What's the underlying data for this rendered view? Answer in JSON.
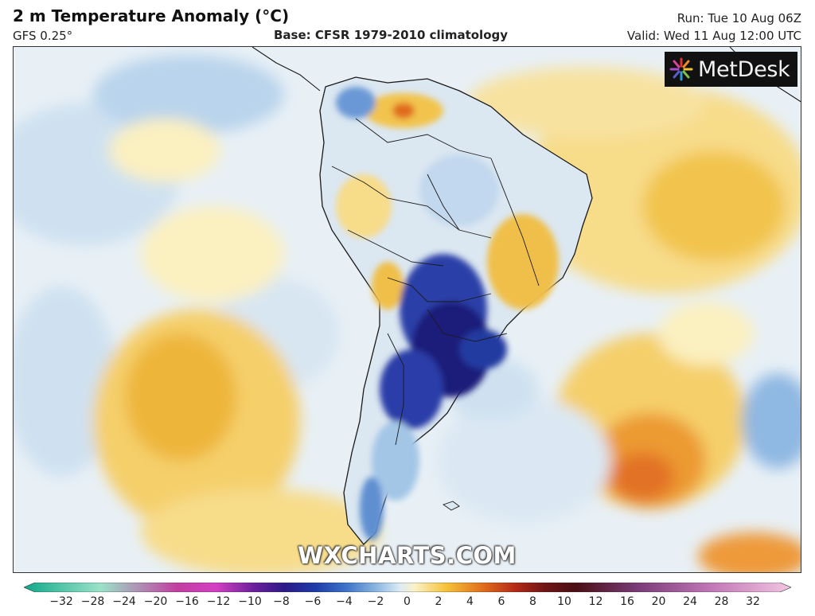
{
  "header": {
    "title": "2 m Temperature Anomaly (°C)",
    "model": "GFS 0.25°",
    "base": "Base: CFSR 1979-2010 climatology",
    "run": "Run: Tue 10 Aug 06Z",
    "valid": "Valid: Wed 11 Aug 12:00 UTC"
  },
  "logo": {
    "text": "MetDesk",
    "icon": "metdesk-burst-icon"
  },
  "watermark": "WXCHARTS.COM",
  "colorbar": {
    "ticks": [
      "−32",
      "−28",
      "−24",
      "−20",
      "−16",
      "−12",
      "−10",
      "−8",
      "−6",
      "−4",
      "−2",
      "0",
      "2",
      "4",
      "6",
      "8",
      "10",
      "12",
      "16",
      "20",
      "24",
      "28",
      "32"
    ],
    "stops": [
      {
        "color": "#0fa88a",
        "at": 0.0
      },
      {
        "color": "#9be2c8",
        "at": 0.1
      },
      {
        "color": "#c23fa0",
        "at": 0.2
      },
      {
        "color": "#d43fc4",
        "at": 0.25
      },
      {
        "color": "#6b1f9c",
        "at": 0.3
      },
      {
        "color": "#2b1a88",
        "at": 0.34
      },
      {
        "color": "#1d3ba8",
        "at": 0.38
      },
      {
        "color": "#3d73c8",
        "at": 0.42
      },
      {
        "color": "#8cb8e0",
        "at": 0.46
      },
      {
        "color": "#dcebf5",
        "at": 0.49
      },
      {
        "color": "#fbf1c6",
        "at": 0.51
      },
      {
        "color": "#f5c33a",
        "at": 0.55
      },
      {
        "color": "#e06a1c",
        "at": 0.6
      },
      {
        "color": "#b52a16",
        "at": 0.64
      },
      {
        "color": "#6e1416",
        "at": 0.68
      },
      {
        "color": "#4a0e14",
        "at": 0.72
      },
      {
        "color": "#7a3c78",
        "at": 0.8
      },
      {
        "color": "#c47ab8",
        "at": 0.9
      },
      {
        "color": "#f1c6e2",
        "at": 1.0
      }
    ]
  },
  "map": {
    "ocean_color": "#e8f0f6",
    "warm_colors": [
      "#fbf0c0",
      "#f5cf6a",
      "#eeaa2a",
      "#e26a1e"
    ],
    "cold_colors": [
      "#cfe1f0",
      "#a3c6e6",
      "#5e8fd0",
      "#2c3fa8",
      "#1d1a7a"
    ]
  }
}
